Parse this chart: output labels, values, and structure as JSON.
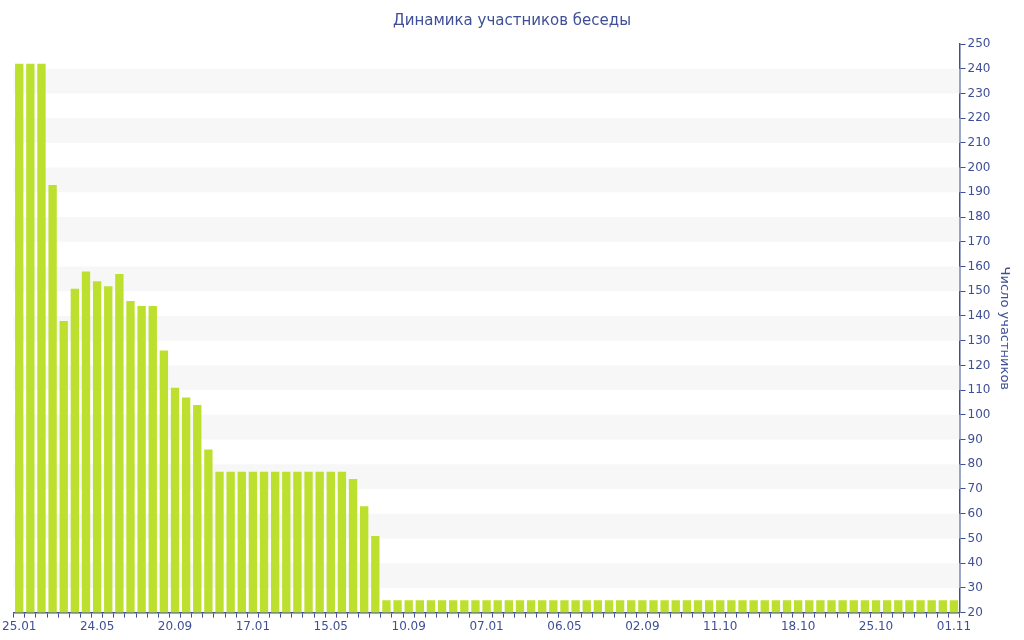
{
  "chart_data": {
    "type": "bar",
    "title": "Динамика участников беседы",
    "ylabel": "Число участников",
    "categories": [
      "25.01",
      null,
      null,
      null,
      null,
      null,
      null,
      "24.05",
      null,
      null,
      null,
      null,
      null,
      null,
      "20.09",
      null,
      null,
      null,
      null,
      null,
      null,
      "17.01",
      null,
      null,
      null,
      null,
      null,
      null,
      "15.05",
      null,
      null,
      null,
      null,
      null,
      null,
      "10.09",
      null,
      null,
      null,
      null,
      null,
      null,
      "07.01",
      null,
      null,
      null,
      null,
      null,
      null,
      "06.05",
      null,
      null,
      null,
      null,
      null,
      null,
      "02.09",
      null,
      null,
      null,
      null,
      null,
      null,
      "11.10",
      null,
      null,
      null,
      null,
      null,
      null,
      "18.10",
      null,
      null,
      null,
      null,
      null,
      null,
      "25.10",
      null,
      null,
      null,
      null,
      null,
      null,
      "01.11"
    ],
    "values": [
      242,
      242,
      242,
      193,
      138,
      151,
      158,
      154,
      152,
      157,
      146,
      144,
      144,
      126,
      111,
      107,
      104,
      86,
      77,
      77,
      77,
      77,
      77,
      77,
      77,
      77,
      77,
      77,
      77,
      77,
      74,
      63,
      51,
      25,
      25,
      25,
      25,
      25,
      25,
      25,
      25,
      25,
      25,
      25,
      25,
      25,
      25,
      25,
      25,
      25,
      25,
      25,
      25,
      25,
      25,
      25,
      25,
      25,
      25,
      25,
      25,
      25,
      25,
      25,
      25,
      25,
      25,
      25,
      25,
      25,
      25,
      25,
      25,
      25,
      25,
      25,
      25,
      25,
      25,
      25,
      25,
      25,
      25,
      25,
      25
    ],
    "color": "#bde02f",
    "ylim": [
      20,
      250
    ],
    "yticks": [
      20,
      30,
      40,
      50,
      60,
      70,
      80,
      90,
      100,
      110,
      120,
      130,
      140,
      150,
      160,
      170,
      180,
      190,
      200,
      210,
      220,
      230,
      240,
      250
    ],
    "grid": false,
    "legend": false,
    "bands": [
      {
        "axis": "y",
        "from": 30,
        "to": 40,
        "color": "#f7f7f7"
      },
      {
        "axis": "y",
        "from": 50,
        "to": 60,
        "color": "#f7f7f7"
      },
      {
        "axis": "y",
        "from": 70,
        "to": 80,
        "color": "#f7f7f7"
      },
      {
        "axis": "y",
        "from": 90,
        "to": 100,
        "color": "#f7f7f7"
      },
      {
        "axis": "y",
        "from": 110,
        "to": 120,
        "color": "#f7f7f7"
      },
      {
        "axis": "y",
        "from": 130,
        "to": 140,
        "color": "#f7f7f7"
      },
      {
        "axis": "y",
        "from": 150,
        "to": 160,
        "color": "#f7f7f7"
      },
      {
        "axis": "y",
        "from": 170,
        "to": 180,
        "color": "#f7f7f7"
      },
      {
        "axis": "y",
        "from": 190,
        "to": 200,
        "color": "#f7f7f7"
      },
      {
        "axis": "y",
        "from": 210,
        "to": 220,
        "color": "#f7f7f7"
      },
      {
        "axis": "y",
        "from": 230,
        "to": 240,
        "color": "#f7f7f7"
      }
    ]
  }
}
